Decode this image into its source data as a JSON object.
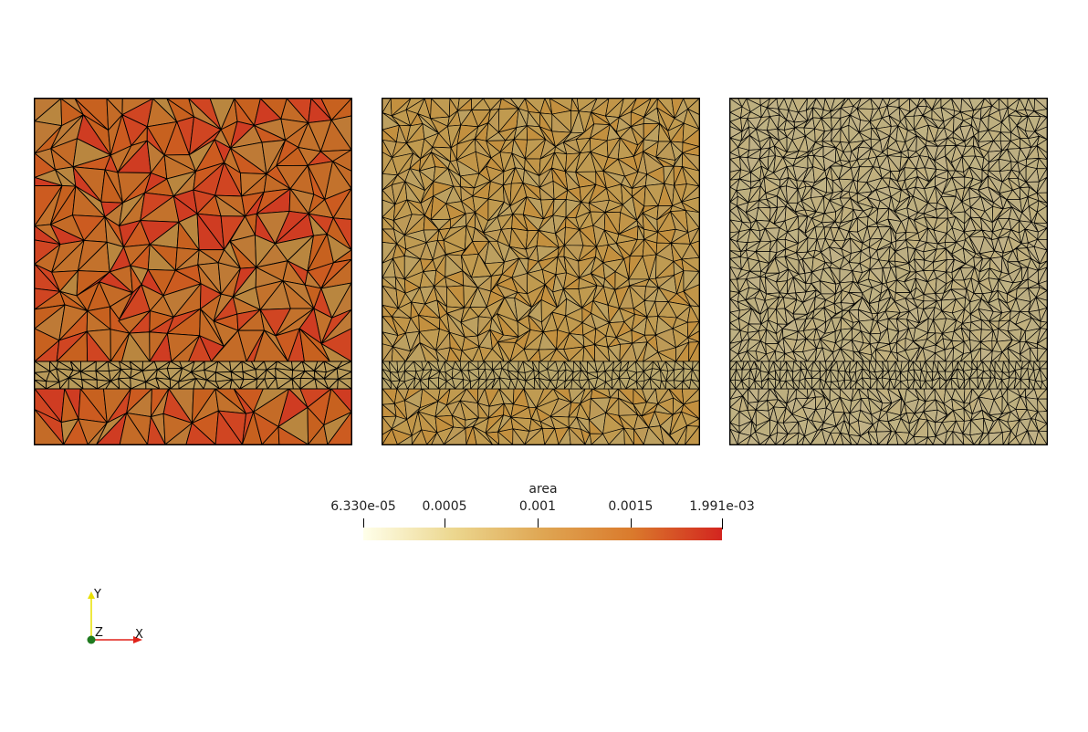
{
  "panels": [
    {
      "name": "mesh-coarse",
      "grid": 14,
      "interface_grid": 26,
      "cell_colors": [
        "#c7611f",
        "#c46b27",
        "#cc5b20",
        "#d04522",
        "#b9863f",
        "#c3722c",
        "#cf3c22",
        "#be7a36"
      ],
      "interface_color": "#b89a5a"
    },
    {
      "name": "mesh-medium",
      "grid": 24,
      "interface_grid": 40,
      "cell_colors": [
        "#bd9a57",
        "#c19548",
        "#bf9b52",
        "#c3903f",
        "#bca060",
        "#c09a4f"
      ],
      "interface_color": "#b8a66c"
    },
    {
      "name": "mesh-fine",
      "grid": 34,
      "interface_grid": 50,
      "cell_colors": [
        "#bfb283",
        "#c1b07e",
        "#bcae82",
        "#c0b186",
        "#bdaf7f"
      ],
      "interface_color": "#bcb082"
    }
  ],
  "colorbar": {
    "title": "area",
    "min": 6.33e-05,
    "max": 0.001991,
    "ticks": [
      {
        "label": "6.330e-05",
        "value": 6.33e-05
      },
      {
        "label": "0.0005",
        "value": 0.0005
      },
      {
        "label": "0.001",
        "value": 0.001
      },
      {
        "label": "0.0015",
        "value": 0.0015
      },
      {
        "label": "1.991e-03",
        "value": 0.001991
      }
    ],
    "gradient": [
      "#ffffea",
      "#ecd78f",
      "#dfa653",
      "#da7a2c",
      "#d3251f"
    ]
  },
  "axes": {
    "x_label": "X",
    "y_label": "Y",
    "z_label": "Z",
    "x_color": "#e0221a",
    "y_color": "#e8e000",
    "z_color": "#1f7a1f"
  }
}
